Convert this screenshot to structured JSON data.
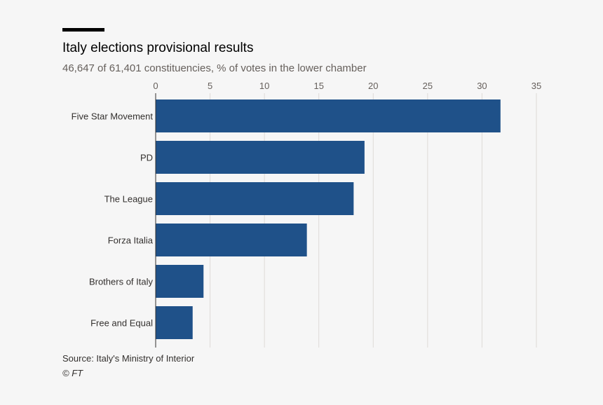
{
  "header": {
    "title": "Italy elections provisional results",
    "subtitle": "46,647 of 61,401 constituencies, % of votes in the lower chamber"
  },
  "footer": {
    "source": "Source: Italy's Ministry of Interior",
    "copyright": "© FT"
  },
  "colors": {
    "bar": "#1f5189",
    "grid": "#dedad7",
    "axis": "#33302e",
    "rule": "#000000"
  },
  "chart_data": {
    "type": "bar",
    "orientation": "horizontal",
    "title": "Italy elections provisional results",
    "subtitle": "46,647 of 61,401 constituencies, % of votes in the lower chamber",
    "categories": [
      "Five Star Movement",
      "PD",
      "The League",
      "Forza Italia",
      "Brothers of Italy",
      "Free and Equal"
    ],
    "values": [
      31.7,
      19.2,
      18.2,
      13.9,
      4.4,
      3.4
    ],
    "xlim": [
      0,
      35
    ],
    "xticks": [
      0,
      5,
      10,
      15,
      20,
      25,
      30,
      35
    ],
    "xtick_position": "top",
    "grid": true
  }
}
